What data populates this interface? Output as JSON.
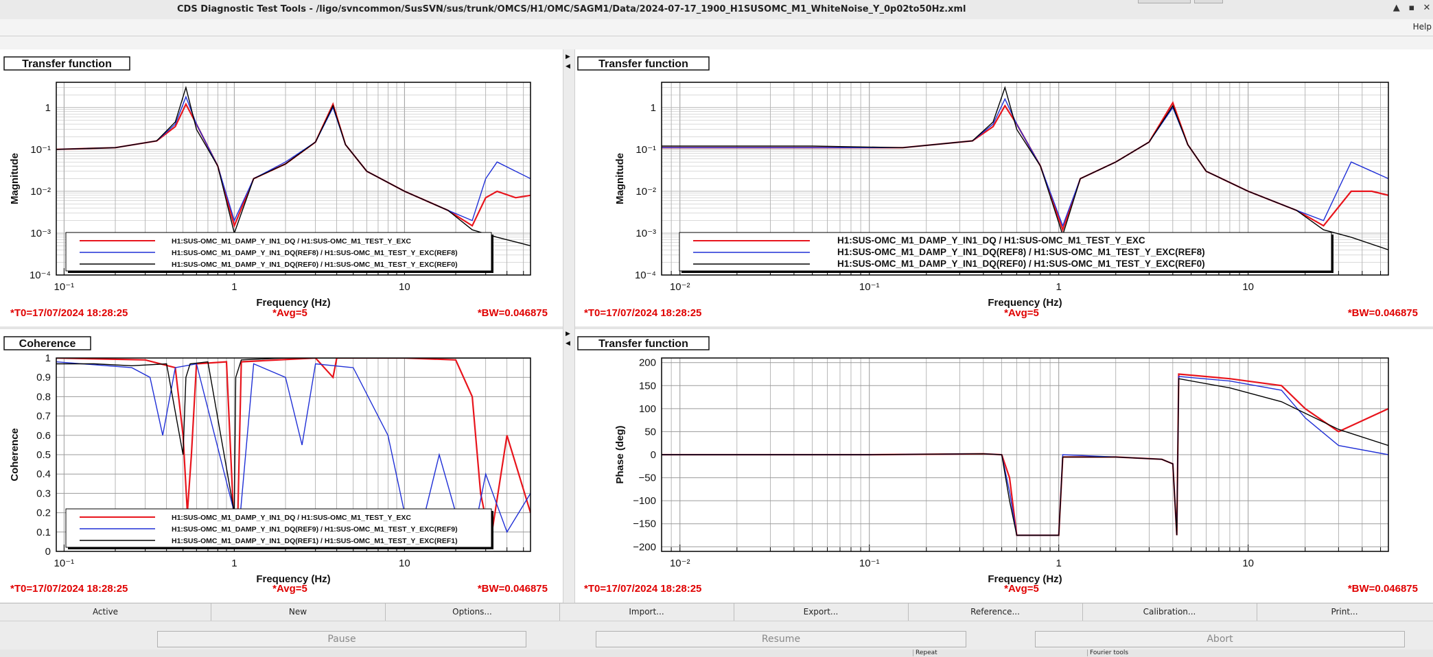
{
  "window": {
    "title": "CDS Diagnostic Test Tools - /ligo/svncommon/SusSVN/sus/trunk/OMCS/H1/OMC/SAGM1/Data/2024-07-17_1900_H1SUSOMC_M1_WhiteNoise_Y_0p02to50Hz.xml",
    "minimize": "▲",
    "maximize": "▪",
    "close": "✕"
  },
  "menu": {
    "help": "Help"
  },
  "colors": {
    "ch1": "#e8141c",
    "ch2": "#1f2fd6",
    "ch3": "#000000",
    "info_text": "#e00000"
  },
  "panels": [
    {
      "tab": "Transfer function",
      "ylabel": "Magnitude",
      "xlabel": "Frequency (Hz)",
      "x_ticks": [
        "10⁻¹",
        "1",
        "10"
      ],
      "y_ticks": [
        "1",
        "10⁻¹",
        "10⁻²",
        "10⁻³",
        "10⁻⁴"
      ],
      "legend": [
        "H1:SUS-OMC_M1_DAMP_Y_IN1_DQ / H1:SUS-OMC_M1_TEST_Y_EXC",
        "H1:SUS-OMC_M1_DAMP_Y_IN1_DQ(REF8) / H1:SUS-OMC_M1_TEST_Y_EXC(REF8)",
        "H1:SUS-OMC_M1_DAMP_Y_IN1_DQ(REF0) / H1:SUS-OMC_M1_TEST_Y_EXC(REF0)"
      ],
      "t0": "*T0=17/07/2024 18:28:25",
      "avg": "*Avg=5",
      "bw": "*BW=0.046875"
    },
    {
      "tab": "Transfer function",
      "ylabel": "Magnitude",
      "xlabel": "Frequency (Hz)",
      "x_ticks": [
        "10⁻²",
        "10⁻¹",
        "1",
        "10"
      ],
      "y_ticks": [
        "1",
        "10⁻¹",
        "10⁻²",
        "10⁻³",
        "10⁻⁴"
      ],
      "legend": [
        "H1:SUS-OMC_M1_DAMP_Y_IN1_DQ / H1:SUS-OMC_M1_TEST_Y_EXC",
        "H1:SUS-OMC_M1_DAMP_Y_IN1_DQ(REF8) / H1:SUS-OMC_M1_TEST_Y_EXC(REF8)",
        "H1:SUS-OMC_M1_DAMP_Y_IN1_DQ(REF0) / H1:SUS-OMC_M1_TEST_Y_EXC(REF0)"
      ],
      "t0": "*T0=17/07/2024 18:28:25",
      "avg": "*Avg=5",
      "bw": "*BW=0.046875"
    },
    {
      "tab": "Coherence",
      "ylabel": "Coherence",
      "xlabel": "Frequency (Hz)",
      "x_ticks": [
        "10⁻¹",
        "1",
        "10"
      ],
      "y_ticks": [
        "1",
        "0.9",
        "0.8",
        "0.7",
        "0.6",
        "0.5",
        "0.4",
        "0.3",
        "0.2",
        "0.1",
        "0"
      ],
      "legend": [
        "H1:SUS-OMC_M1_DAMP_Y_IN1_DQ / H1:SUS-OMC_M1_TEST_Y_EXC",
        "H1:SUS-OMC_M1_DAMP_Y_IN1_DQ(REF9) / H1:SUS-OMC_M1_TEST_Y_EXC(REF9)",
        "H1:SUS-OMC_M1_DAMP_Y_IN1_DQ(REF1) / H1:SUS-OMC_M1_TEST_Y_EXC(REF1)"
      ],
      "t0": "*T0=17/07/2024 18:28:25",
      "avg": "*Avg=5",
      "bw": "*BW=0.046875"
    },
    {
      "tab": "Transfer function",
      "ylabel": "Phase (deg)",
      "xlabel": "Frequency (Hz)",
      "x_ticks": [
        "10⁻²",
        "10⁻¹",
        "1",
        "10"
      ],
      "y_ticks": [
        "200",
        "150",
        "100",
        "50",
        "0",
        "−50",
        "−100",
        "−150",
        "−200"
      ],
      "legend": [],
      "t0": "*T0=17/07/2024 18:28:25",
      "avg": "*Avg=5",
      "bw": "*BW=0.046875"
    }
  ],
  "chart_data": [
    {
      "type": "line",
      "title": "",
      "xlabel": "Frequency (Hz)",
      "ylabel": "Magnitude",
      "xscale": "log",
      "yscale": "log",
      "xlim": [
        0.09,
        55
      ],
      "ylim": [
        0.0001,
        4
      ],
      "grid": true,
      "legend_position": "bottom-center",
      "series": [
        {
          "name": "H1:SUS-OMC_M1_DAMP_Y_IN1_DQ / H1:SUS-OMC_M1_TEST_Y_EXC",
          "color": "#e8141c",
          "x": [
            0.09,
            0.2,
            0.35,
            0.45,
            0.52,
            0.6,
            0.8,
            1.0,
            1.3,
            2.0,
            3.0,
            3.8,
            4.5,
            6.0,
            10,
            18,
            25,
            30,
            35,
            45,
            55
          ],
          "y": [
            0.1,
            0.11,
            0.16,
            0.35,
            1.2,
            0.4,
            0.04,
            0.0015,
            0.02,
            0.045,
            0.15,
            1.2,
            0.13,
            0.03,
            0.01,
            0.0035,
            0.0015,
            0.007,
            0.01,
            0.007,
            0.008
          ]
        },
        {
          "name": "H1:SUS-OMC_M1_DAMP_Y_IN1_DQ(REF8) / H1:SUS-OMC_M1_TEST_Y_EXC(REF8)",
          "color": "#1f2fd6",
          "x": [
            0.09,
            0.2,
            0.35,
            0.45,
            0.52,
            0.6,
            0.8,
            1.0,
            1.3,
            2.0,
            3.0,
            3.8,
            4.5,
            6.0,
            10,
            18,
            25,
            30,
            35,
            45,
            55
          ],
          "y": [
            0.1,
            0.11,
            0.16,
            0.4,
            1.8,
            0.4,
            0.04,
            0.002,
            0.02,
            0.05,
            0.15,
            1.0,
            0.13,
            0.03,
            0.01,
            0.0035,
            0.002,
            0.02,
            0.05,
            0.03,
            0.02
          ]
        },
        {
          "name": "H1:SUS-OMC_M1_DAMP_Y_IN1_DQ(REF0) / H1:SUS-OMC_M1_TEST_Y_EXC(REF0)",
          "color": "#000000",
          "x": [
            0.09,
            0.2,
            0.35,
            0.45,
            0.52,
            0.6,
            0.8,
            1.0,
            1.3,
            2.0,
            3.0,
            3.8,
            4.5,
            6.0,
            10,
            18,
            25,
            35,
            55
          ],
          "y": [
            0.1,
            0.11,
            0.16,
            0.45,
            3.0,
            0.3,
            0.04,
            0.001,
            0.02,
            0.045,
            0.15,
            1.1,
            0.13,
            0.03,
            0.01,
            0.0035,
            0.0012,
            0.0008,
            0.0005
          ]
        }
      ]
    },
    {
      "type": "line",
      "title": "",
      "xlabel": "Frequency (Hz)",
      "ylabel": "Magnitude",
      "xscale": "log",
      "yscale": "log",
      "xlim": [
        0.008,
        55
      ],
      "ylim": [
        0.0001,
        4
      ],
      "grid": true,
      "legend_position": "bottom-center",
      "series": [
        {
          "name": "H1:SUS-OMC_M1_DAMP_Y_IN1_DQ / H1:SUS-OMC_M1_TEST_Y_EXC",
          "color": "#e8141c",
          "x": [
            0.008,
            0.05,
            0.15,
            0.35,
            0.45,
            0.52,
            0.6,
            0.8,
            1.05,
            1.3,
            2.0,
            3.0,
            4.0,
            4.8,
            6.0,
            10,
            18,
            25,
            35,
            45,
            55
          ],
          "y": [
            0.11,
            0.11,
            0.11,
            0.16,
            0.35,
            1.1,
            0.4,
            0.04,
            0.0012,
            0.02,
            0.05,
            0.15,
            1.3,
            0.13,
            0.03,
            0.01,
            0.0035,
            0.0015,
            0.01,
            0.01,
            0.008
          ]
        },
        {
          "name": "H1:SUS-OMC_M1_DAMP_Y_IN1_DQ(REF8) / H1:SUS-OMC_M1_TEST_Y_EXC(REF8)",
          "color": "#1f2fd6",
          "x": [
            0.008,
            0.05,
            0.15,
            0.35,
            0.45,
            0.52,
            0.6,
            0.8,
            1.05,
            1.3,
            2.0,
            3.0,
            4.0,
            4.8,
            6.0,
            10,
            18,
            25,
            35,
            45,
            55
          ],
          "y": [
            0.11,
            0.11,
            0.11,
            0.16,
            0.4,
            1.6,
            0.4,
            0.04,
            0.0015,
            0.02,
            0.05,
            0.15,
            1.0,
            0.13,
            0.03,
            0.01,
            0.0035,
            0.002,
            0.05,
            0.03,
            0.02
          ]
        },
        {
          "name": "H1:SUS-OMC_M1_DAMP_Y_IN1_DQ(REF0) / H1:SUS-OMC_M1_TEST_Y_EXC(REF0)",
          "color": "#000000",
          "x": [
            0.008,
            0.05,
            0.15,
            0.35,
            0.45,
            0.52,
            0.6,
            0.8,
            1.05,
            1.3,
            2.0,
            3.0,
            4.0,
            4.8,
            6.0,
            10,
            18,
            25,
            35,
            55
          ],
          "y": [
            0.12,
            0.12,
            0.11,
            0.16,
            0.45,
            3.0,
            0.3,
            0.04,
            0.0009,
            0.02,
            0.05,
            0.15,
            1.1,
            0.13,
            0.03,
            0.01,
            0.0035,
            0.0012,
            0.0008,
            0.0004
          ]
        }
      ]
    },
    {
      "type": "line",
      "title": "",
      "xlabel": "Frequency (Hz)",
      "ylabel": "Coherence",
      "xscale": "log",
      "yscale": "linear",
      "xlim": [
        0.09,
        55
      ],
      "ylim": [
        0,
        1
      ],
      "grid": true,
      "legend_position": "bottom-center",
      "series": [
        {
          "name": "H1:SUS-OMC_M1_DAMP_Y_IN1_DQ / H1:SUS-OMC_M1_TEST_Y_EXC",
          "color": "#e8141c",
          "x": [
            0.09,
            0.3,
            0.45,
            0.5,
            0.53,
            0.56,
            0.6,
            0.9,
            1.0,
            1.05,
            1.1,
            3.0,
            3.8,
            3.9,
            4.0,
            10,
            20,
            25,
            28,
            32,
            40,
            55
          ],
          "y": [
            1,
            0.99,
            0.95,
            0.6,
            0.2,
            0.5,
            0.97,
            0.98,
            0.1,
            0.2,
            0.98,
            1,
            0.9,
            0.95,
            1,
            1,
            0.99,
            0.8,
            0.3,
            0.05,
            0.6,
            0.2
          ]
        },
        {
          "name": "H1:SUS-OMC_M1_DAMP_Y_IN1_DQ(REF9) / H1:SUS-OMC_M1_TEST_Y_EXC(REF9)",
          "color": "#1f2fd6",
          "x": [
            0.09,
            0.25,
            0.32,
            0.38,
            0.45,
            0.6,
            1.0,
            1.05,
            1.3,
            2.0,
            2.5,
            3.0,
            5.0,
            8.0,
            10,
            12,
            16,
            20,
            25,
            30,
            40,
            55
          ],
          "y": [
            0.98,
            0.95,
            0.9,
            0.6,
            0.95,
            0.97,
            0.2,
            0.05,
            0.97,
            0.9,
            0.55,
            0.97,
            0.95,
            0.6,
            0.2,
            0.05,
            0.5,
            0.2,
            0.05,
            0.4,
            0.1,
            0.3
          ]
        },
        {
          "name": "H1:SUS-OMC_M1_DAMP_Y_IN1_DQ(REF1) / H1:SUS-OMC_M1_TEST_Y_EXC(REF1)",
          "color": "#000000",
          "x": [
            0.09,
            0.15,
            0.25,
            0.4,
            0.5,
            0.52,
            0.55,
            0.7,
            1.0,
            1.02,
            1.1,
            2.0,
            10,
            55
          ],
          "y": [
            0.97,
            0.97,
            0.96,
            0.97,
            0.5,
            0.9,
            0.97,
            0.98,
            0.2,
            0.9,
            0.99,
            1,
            1,
            1
          ]
        }
      ]
    },
    {
      "type": "line",
      "title": "",
      "xlabel": "Frequency (Hz)",
      "ylabel": "Phase (deg)",
      "xscale": "log",
      "yscale": "linear",
      "xlim": [
        0.008,
        55
      ],
      "ylim": [
        -210,
        210
      ],
      "grid": true,
      "series": [
        {
          "color": "#e8141c",
          "x": [
            0.008,
            0.1,
            0.4,
            0.5,
            0.55,
            0.6,
            0.8,
            1.0,
            1.05,
            2.0,
            3.5,
            4.0,
            4.2,
            4.3,
            8.0,
            15,
            20,
            30,
            55
          ],
          "y": [
            0,
            0,
            2,
            0,
            -50,
            -175,
            -175,
            -175,
            -5,
            -5,
            -10,
            -20,
            -175,
            175,
            165,
            150,
            100,
            50,
            100
          ]
        },
        {
          "color": "#1f2fd6",
          "x": [
            0.008,
            0.1,
            0.4,
            0.5,
            0.55,
            0.6,
            0.8,
            1.0,
            1.05,
            2.0,
            3.5,
            4.0,
            4.2,
            4.3,
            8.0,
            15,
            20,
            30,
            55
          ],
          "y": [
            0,
            0,
            2,
            0,
            -80,
            -175,
            -175,
            -175,
            0,
            -5,
            -10,
            -20,
            -175,
            170,
            160,
            140,
            80,
            20,
            0
          ]
        },
        {
          "color": "#000000",
          "x": [
            0.008,
            0.1,
            0.4,
            0.5,
            0.55,
            0.6,
            0.8,
            1.0,
            1.05,
            2.0,
            3.5,
            4.0,
            4.2,
            4.3,
            8.0,
            15,
            20,
            30,
            55
          ],
          "y": [
            0,
            0,
            2,
            0,
            -100,
            -175,
            -175,
            -175,
            -5,
            -5,
            -10,
            -20,
            -175,
            165,
            145,
            115,
            90,
            55,
            20
          ]
        }
      ]
    }
  ],
  "bottom_buttons": [
    "Active",
    "New",
    "Options...",
    "Import...",
    "Export...",
    "Reference...",
    "Calibration...",
    "Print..."
  ],
  "controls": {
    "pause": "Pause",
    "resume": "Resume",
    "abort": "Abort"
  },
  "status": {
    "repeat": "Repeat",
    "fourier": "Fourier tools"
  }
}
